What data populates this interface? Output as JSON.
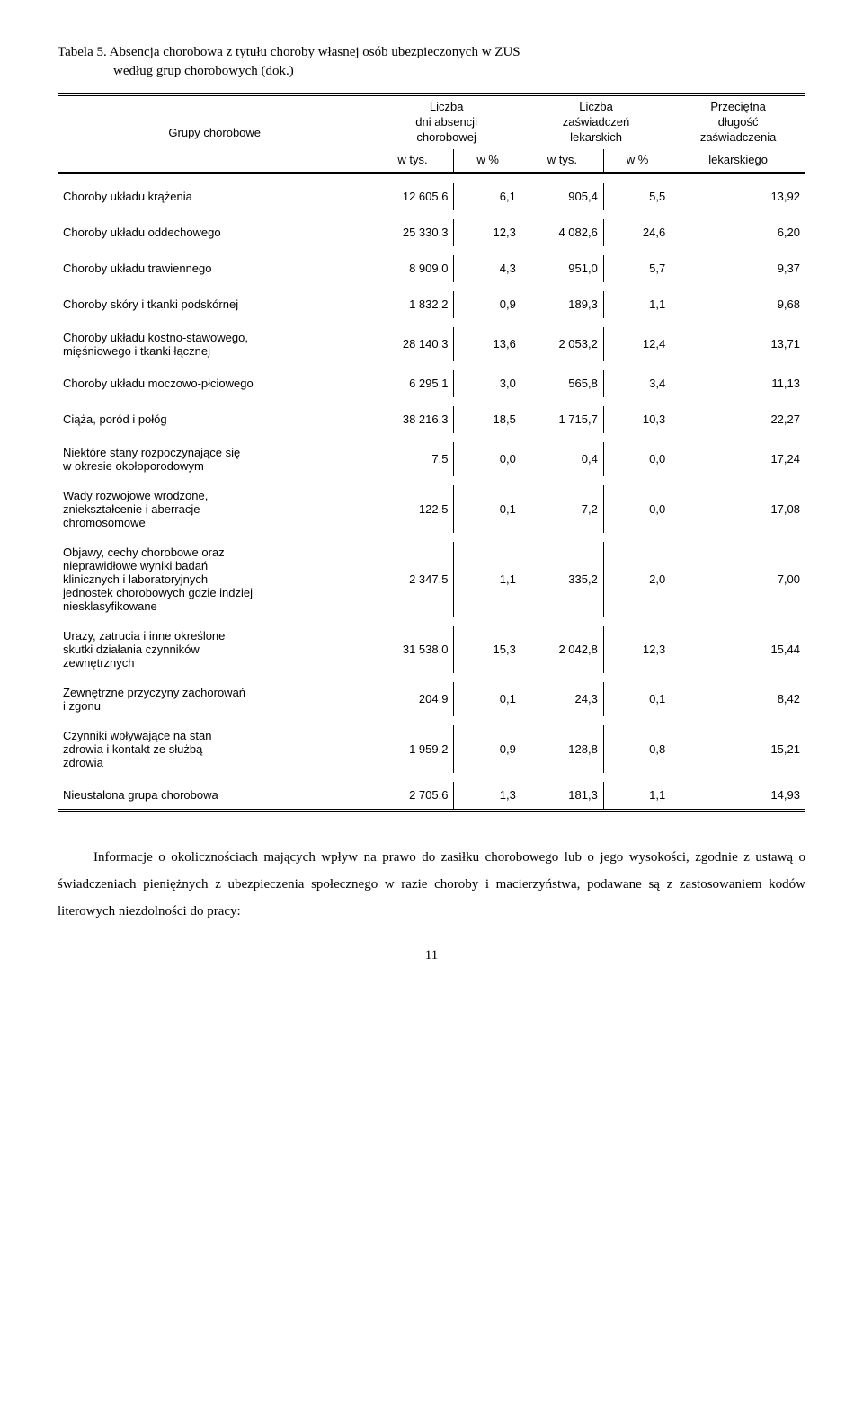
{
  "title_line1": "Tabela 5. Absencja chorobowa z tytułu choroby własnej osób ubezpieczonych w ZUS",
  "title_line2": "według grup chorobowych (dok.)",
  "header": {
    "grupy": "Grupy chorobowe",
    "liczba": "Liczba",
    "dni_absencji": "dni absencji",
    "chorobowej": "chorobowej",
    "zaswiadczen": "zaświadczeń",
    "lekarskich": "lekarskich",
    "przecietna": "Przeciętna",
    "dlugosc": "długość",
    "zaswiadczenia": "zaświadczenia",
    "wtys": "w tys.",
    "wpct": "w %",
    "lekarskiego": "lekarskiego"
  },
  "rows": [
    {
      "label": "Choroby układu krążenia",
      "c1": "12 605,6",
      "c2": "6,1",
      "c3": "905,4",
      "c4": "5,5",
      "c5": "13,92"
    },
    {
      "label": "Choroby układu oddechowego",
      "c1": "25 330,3",
      "c2": "12,3",
      "c3": "4 082,6",
      "c4": "24,6",
      "c5": "6,20"
    },
    {
      "label": "Choroby układu trawiennego",
      "c1": "8 909,0",
      "c2": "4,3",
      "c3": "951,0",
      "c4": "5,7",
      "c5": "9,37"
    },
    {
      "label": "Choroby skóry i tkanki podskórnej",
      "c1": "1 832,2",
      "c2": "0,9",
      "c3": "189,3",
      "c4": "1,1",
      "c5": "9,68"
    },
    {
      "label": "Choroby układu kostno-stawowego,\nmięśniowego i tkanki łącznej",
      "c1": "28 140,3",
      "c2": "13,6",
      "c3": "2 053,2",
      "c4": "12,4",
      "c5": "13,71"
    },
    {
      "label": "Choroby układu moczowo-płciowego",
      "c1": "6 295,1",
      "c2": "3,0",
      "c3": "565,8",
      "c4": "3,4",
      "c5": "11,13"
    },
    {
      "label": "Ciąża, poród i połóg",
      "c1": "38 216,3",
      "c2": "18,5",
      "c3": "1 715,7",
      "c4": "10,3",
      "c5": "22,27"
    },
    {
      "label": "Niektóre stany rozpoczynające się\nw okresie okołoporodowym",
      "c1": "7,5",
      "c2": "0,0",
      "c3": "0,4",
      "c4": "0,0",
      "c5": "17,24"
    },
    {
      "label": "Wady rozwojowe wrodzone,\nzniekształcenie i aberracje\nchromosomowe",
      "c1": "122,5",
      "c2": "0,1",
      "c3": "7,2",
      "c4": "0,0",
      "c5": "17,08"
    },
    {
      "label": "Objawy, cechy chorobowe oraz\nnieprawidłowe wyniki badań\nklinicznych i laboratoryjnych\njednostek chorobowych gdzie indziej\nniesklasyfikowane",
      "c1": "2 347,5",
      "c2": "1,1",
      "c3": "335,2",
      "c4": "2,0",
      "c5": "7,00"
    },
    {
      "label": "Urazy, zatrucia i inne określone\nskutki działania czynników\nzewnętrznych",
      "c1": "31 538,0",
      "c2": "15,3",
      "c3": "2 042,8",
      "c4": "12,3",
      "c5": "15,44"
    },
    {
      "label": "Zewnętrzne przyczyny zachorowań\ni zgonu",
      "c1": "204,9",
      "c2": "0,1",
      "c3": "24,3",
      "c4": "0,1",
      "c5": "8,42"
    },
    {
      "label": "Czynniki wpływające na stan\nzdrowia i kontakt ze służbą\nzdrowia",
      "c1": "1 959,2",
      "c2": "0,9",
      "c3": "128,8",
      "c4": "0,8",
      "c5": "15,21"
    },
    {
      "label": "Nieustalona grupa chorobowa",
      "c1": "2 705,6",
      "c2": "1,3",
      "c3": "181,3",
      "c4": "1,1",
      "c5": "14,93"
    }
  ],
  "paragraph": "Informacje o okolicznościach mających wpływ na prawo do zasiłku chorobowego lub o jego wysokości, zgodnie z ustawą o świadczeniach pieniężnych z ubezpieczenia społecznego w razie choroby i macierzyństwa, podawane są z zastosowaniem kodów literowych niezdolności do pracy:",
  "page_number": "11"
}
